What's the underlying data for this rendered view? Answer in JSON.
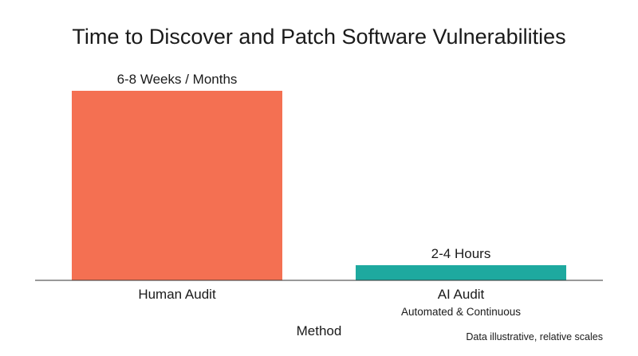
{
  "chart_data": {
    "type": "bar",
    "title": "Time to Discover and Patch Software Vulnerabilities",
    "xlabel": "Method",
    "ylabel": "",
    "categories": [
      "Human Audit",
      "AI Audit"
    ],
    "category_sublabels": [
      "",
      "Automated & Continuous"
    ],
    "values": [
      100,
      8
    ],
    "value_labels": [
      "6-8 Weeks / Months",
      "2-4 Hours"
    ],
    "colors": [
      "#f47052",
      "#1ea99f"
    ],
    "ylim": [
      0,
      100
    ],
    "grid": false,
    "legend": "none",
    "footnote": "Data illustrative, relative scales"
  }
}
